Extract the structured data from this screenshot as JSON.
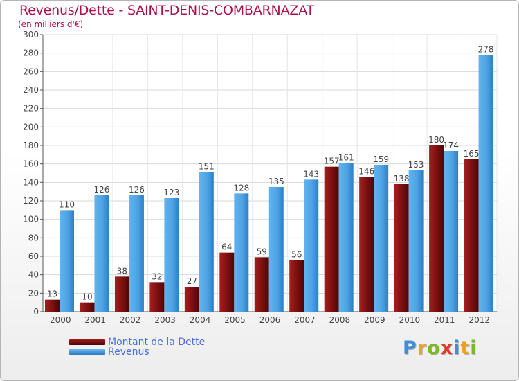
{
  "chart_data": {
    "type": "bar",
    "title": "Revenus/Dette - SAINT-DENIS-COMBARNAZAT",
    "subtitle": "(en milliers d'€)",
    "categories": [
      "2000",
      "2001",
      "2002",
      "2003",
      "2004",
      "2005",
      "2006",
      "2007",
      "2008",
      "2009",
      "2010",
      "2011",
      "2012"
    ],
    "series": [
      {
        "name": "Montant de la Dette",
        "color": "#7a0f0f",
        "values": [
          13,
          10,
          38,
          32,
          27,
          64,
          59,
          56,
          157,
          146,
          138,
          180,
          165
        ]
      },
      {
        "name": "Revenus",
        "color": "#4fa3e3",
        "values": [
          110,
          126,
          126,
          123,
          151,
          128,
          135,
          143,
          161,
          159,
          153,
          174,
          278
        ]
      }
    ],
    "ylim": [
      0,
      300
    ],
    "yticks": [
      0,
      20,
      40,
      60,
      80,
      100,
      120,
      140,
      160,
      180,
      200,
      220,
      240,
      260,
      280,
      300
    ],
    "grid": true,
    "legend_position": "bottom-left"
  },
  "branding": {
    "logo_letters": [
      {
        "char": "P",
        "color": "#3e8fd8"
      },
      {
        "char": "r",
        "color": "#f0a020"
      },
      {
        "char": "o",
        "color": "#78b82a"
      },
      {
        "char": "x",
        "color": "#e03a2a"
      },
      {
        "char": "i",
        "color": "#3e8fd8"
      },
      {
        "char": "t",
        "color": "#f0a020"
      },
      {
        "char": "i",
        "color": "#78b82a"
      }
    ]
  }
}
